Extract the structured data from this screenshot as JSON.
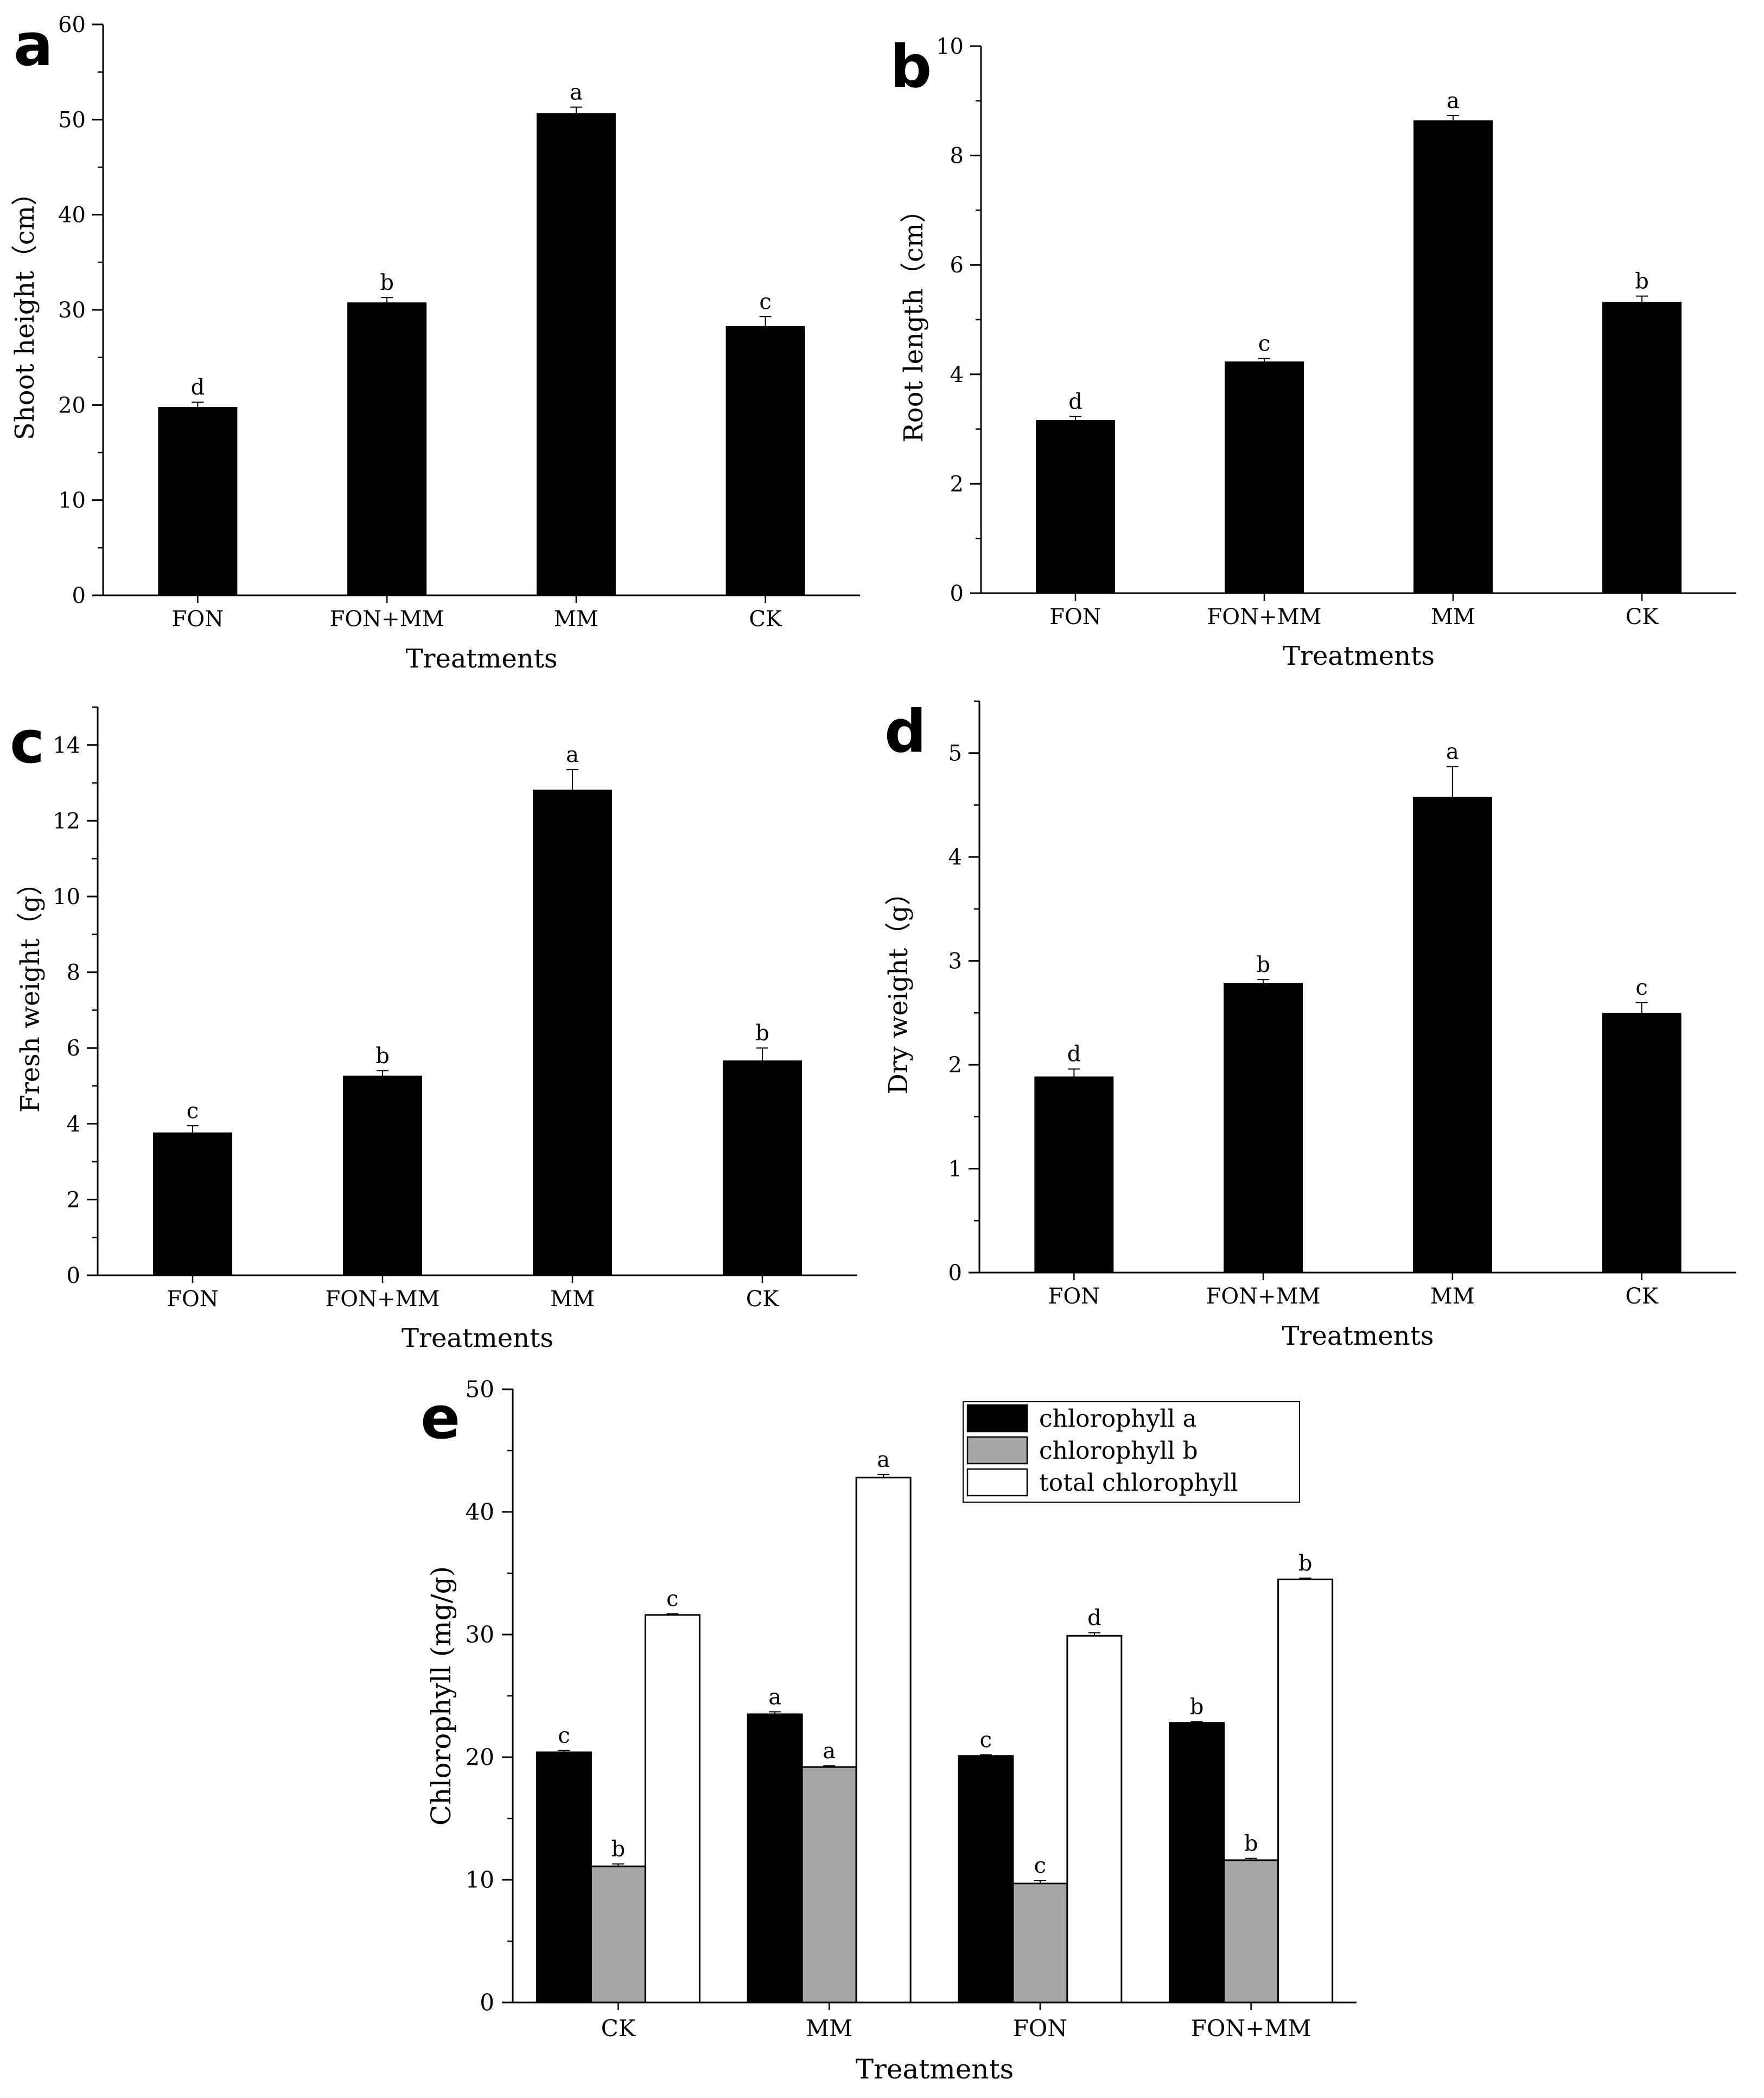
{
  "chart_data": [
    {
      "panel": "a",
      "type": "bar",
      "xlabel": "Treatments",
      "ylabel": "Shoot height（cm）",
      "ylim": [
        0,
        60
      ],
      "yticks": [
        0,
        10,
        20,
        30,
        40,
        50,
        60
      ],
      "yminor": 5,
      "categories": [
        "FON",
        "FON+MM",
        "MM",
        "CK"
      ],
      "values": [
        19.7,
        30.7,
        50.6,
        28.2
      ],
      "errors": [
        0.6,
        0.6,
        0.7,
        1.1
      ],
      "letters": [
        "d",
        "b",
        "a",
        "c"
      ]
    },
    {
      "panel": "b",
      "type": "bar",
      "xlabel": "Treatments",
      "ylabel": "Root length（cm）",
      "ylim": [
        0,
        10
      ],
      "yticks": [
        0,
        2,
        4,
        6,
        8,
        10
      ],
      "yminor": 1,
      "categories": [
        "FON",
        "FON+MM",
        "MM",
        "CK"
      ],
      "values": [
        3.15,
        4.22,
        8.63,
        5.31
      ],
      "errors": [
        0.08,
        0.07,
        0.1,
        0.12
      ],
      "letters": [
        "d",
        "c",
        "a",
        "b"
      ]
    },
    {
      "panel": "c",
      "type": "bar",
      "xlabel": "Treatments",
      "ylabel": "Fresh weight（g）",
      "ylim": [
        0,
        15
      ],
      "yticks": [
        0,
        2,
        4,
        6,
        8,
        10,
        12,
        14
      ],
      "yminor": 1,
      "categories": [
        "FON",
        "FON+MM",
        "MM",
        "CK"
      ],
      "values": [
        3.75,
        5.25,
        12.8,
        5.65
      ],
      "errors": [
        0.2,
        0.15,
        0.55,
        0.35
      ],
      "letters": [
        "c",
        "b",
        "a",
        "b"
      ]
    },
    {
      "panel": "d",
      "type": "bar",
      "xlabel": "Treatments",
      "ylabel": "Dry weight（g）",
      "ylim": [
        0,
        5.5
      ],
      "yticks": [
        0,
        1,
        2,
        3,
        4,
        5
      ],
      "yminor": 0.5,
      "categories": [
        "FON",
        "FON+MM",
        "MM",
        "CK"
      ],
      "values": [
        1.88,
        2.78,
        4.57,
        2.49
      ],
      "errors": [
        0.08,
        0.04,
        0.3,
        0.11
      ],
      "letters": [
        "d",
        "b",
        "a",
        "c"
      ]
    },
    {
      "panel": "e",
      "type": "bar",
      "xlabel": "Treatments",
      "ylabel": "Chlorophyll (mg/g)",
      "ylim": [
        0,
        50
      ],
      "yticks": [
        0,
        10,
        20,
        30,
        40,
        50
      ],
      "yminor": 5,
      "categories": [
        "CK",
        "MM",
        "FON",
        "FON+MM"
      ],
      "legend_position": "top-right",
      "series": [
        {
          "name": "chlorophyll a",
          "color": "#000000",
          "values": [
            20.4,
            23.5,
            20.1,
            22.8
          ],
          "errors": [
            0.15,
            0.2,
            0.1,
            0.1
          ],
          "letters": [
            "c",
            "a",
            "c",
            "b"
          ]
        },
        {
          "name": "chlorophyll b",
          "color": "#a6a6a6",
          "values": [
            11.1,
            19.2,
            9.7,
            11.6
          ],
          "errors": [
            0.2,
            0.1,
            0.25,
            0.15
          ],
          "letters": [
            "b",
            "a",
            "c",
            "b"
          ]
        },
        {
          "name": "total chlorophyll",
          "color": "#ffffff",
          "values": [
            31.6,
            42.8,
            29.9,
            34.5
          ],
          "errors": [
            0.1,
            0.25,
            0.25,
            0.1
          ],
          "letters": [
            "c",
            "a",
            "d",
            "b"
          ]
        }
      ]
    }
  ]
}
